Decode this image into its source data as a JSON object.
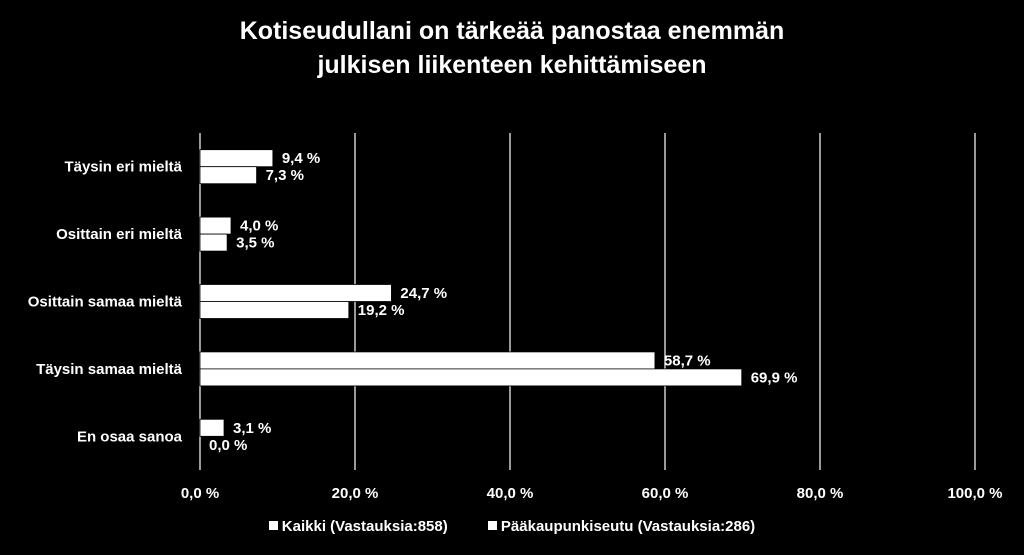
{
  "chart_data": {
    "type": "bar",
    "orientation": "horizontal",
    "title_lines": [
      "Kotiseudullani on tärkeää panostaa enemmän",
      "julkisen liikenteen kehittämiseen"
    ],
    "categories": [
      "Täysin eri mieltä",
      "Osittain eri mieltä",
      "Osittain samaa mieltä",
      "Täysin samaa mieltä",
      "En osaa sanoa"
    ],
    "series": [
      {
        "name": "Kaikki (Vastauksia:858)",
        "values": [
          9.4,
          4.0,
          24.7,
          58.7,
          3.1
        ],
        "labels": [
          "9,4 %",
          "4,0 %",
          "24,7 %",
          "58,7 %",
          "3,1 %"
        ]
      },
      {
        "name": "Pääkaupunkiseutu (Vastauksia:286)",
        "values": [
          7.3,
          3.5,
          19.2,
          69.9,
          0.0
        ],
        "labels": [
          "7,3 %",
          "3,5 %",
          "19,2 %",
          "69,9 %",
          "0,0 %"
        ]
      }
    ],
    "xlim": [
      0,
      100
    ],
    "x_ticks": [
      0,
      20,
      40,
      60,
      80,
      100
    ],
    "x_tick_labels": [
      "0,0 %",
      "20,0 %",
      "40,0 %",
      "60,0 %",
      "80,0 %",
      "100,0 %"
    ],
    "grid": true,
    "legend_position": "bottom",
    "colors": {
      "background": "#000000",
      "bar": "#ffffff",
      "gridline": "#ffffff",
      "text": "#ffffff"
    }
  }
}
